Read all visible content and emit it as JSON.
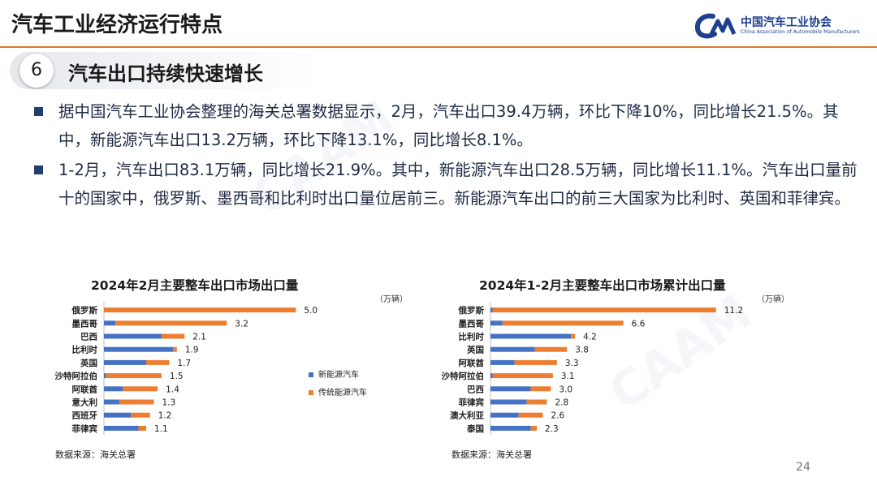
{
  "header": {
    "title": "汽车工业经济运行特点",
    "logo_cn": "中国汽车工业协会",
    "logo_en": "China Association of Automobile Manufacturers"
  },
  "section": {
    "number": "6",
    "title": "汽车出口持续快速增长"
  },
  "bullets": [
    "据中国汽车工业协会整理的海关总署数据显示，2月，汽车出口39.4万辆，环比下降10%，同比增长21.5%。其中，新能源汽车出口13.2万辆，环比下降13.1%，同比增长8.1%。",
    "1-2月，汽车出口83.1万辆，同比增长21.9%。其中，新能源汽车出口28.5万辆，同比增长11.1%。汽车出口量前十的国家中，俄罗斯、墨西哥和比利时出口量位居前三。新能源汽车出口的前三大国家为比利时、英国和菲律宾。"
  ],
  "page_number": "24",
  "colors": {
    "nev": "#4472c4",
    "ice": "#ed7d31",
    "accent": "#e07a2a",
    "brand": "#1f3f8f"
  },
  "chart_data": [
    {
      "type": "bar",
      "orientation": "horizontal",
      "stacked": true,
      "title": "2024年2月主要整车出口市场出口量",
      "unit": "（万辆）",
      "source": "数据来源：海关总署",
      "legend_position": "right",
      "xlim": [
        0,
        5.5
      ],
      "categories": [
        "俄罗斯",
        "墨西哥",
        "巴西",
        "比利时",
        "英国",
        "沙特阿拉伯",
        "阿联酋",
        "意大利",
        "西班牙",
        "菲律宾"
      ],
      "totals": [
        "5.0",
        "3.2",
        "2.1",
        "1.9",
        "1.7",
        "1.5",
        "1.4",
        "1.3",
        "1.2",
        "1.1"
      ],
      "series": [
        {
          "name": "新能源汽车",
          "values": [
            0.0,
            0.3,
            1.5,
            1.8,
            1.1,
            0.05,
            0.5,
            0.4,
            0.7,
            0.9
          ]
        },
        {
          "name": "传统能源汽车",
          "values": [
            5.0,
            2.9,
            0.6,
            0.1,
            0.6,
            1.45,
            0.9,
            0.9,
            0.5,
            0.2
          ]
        }
      ]
    },
    {
      "type": "bar",
      "orientation": "horizontal",
      "stacked": true,
      "title": "2024年1-2月主要整车出口市场累计出口量",
      "unit": "（万辆）",
      "source": "数据来源：海关总署",
      "xlim": [
        0,
        12.5
      ],
      "categories": [
        "俄罗斯",
        "墨西哥",
        "比利时",
        "英国",
        "阿联酋",
        "沙特阿拉伯",
        "巴西",
        "菲律宾",
        "澳大利亚",
        "泰国"
      ],
      "totals": [
        "11.2",
        "6.6",
        "4.2",
        "3.8",
        "3.3",
        "3.1",
        "3.0",
        "2.8",
        "2.6",
        "2.3"
      ],
      "series": [
        {
          "name": "新能源汽车",
          "values": [
            0.1,
            0.6,
            4.0,
            2.2,
            1.2,
            0.1,
            2.0,
            1.8,
            1.4,
            2.0
          ]
        },
        {
          "name": "传统能源汽车",
          "values": [
            11.1,
            6.0,
            0.2,
            1.6,
            2.1,
            3.0,
            1.0,
            1.0,
            1.2,
            0.3
          ]
        }
      ]
    }
  ]
}
